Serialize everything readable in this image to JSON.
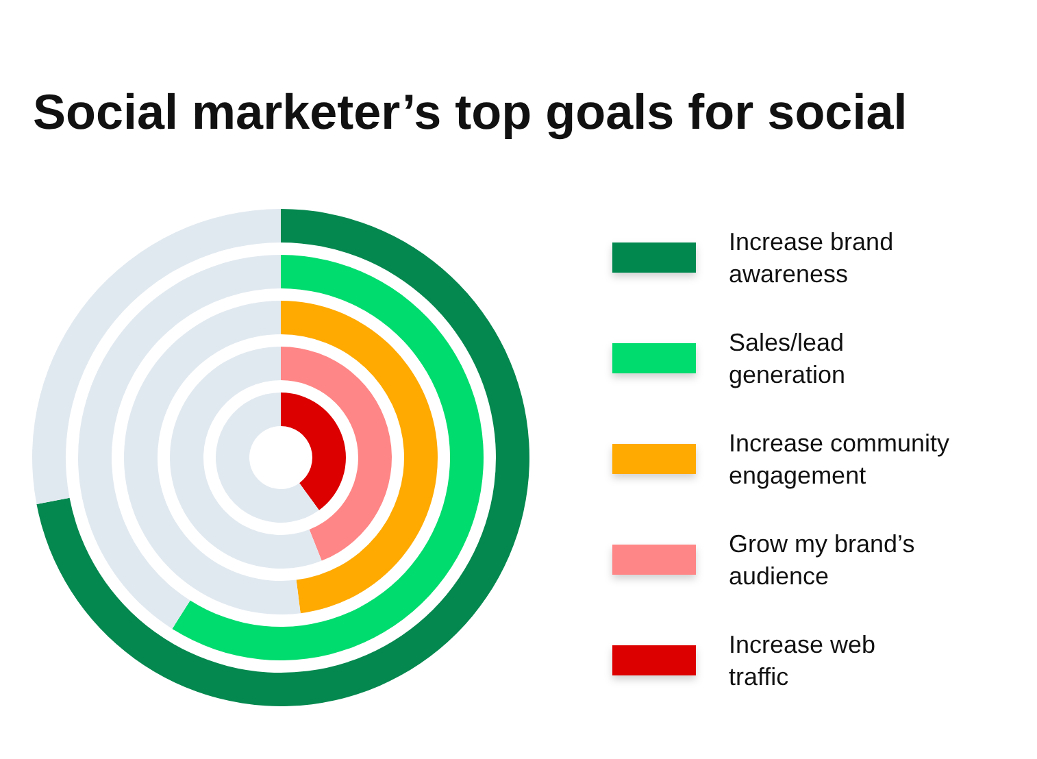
{
  "chart_data": [
    {
      "type": "donut",
      "title": "Social marketer’s top goals for social",
      "categories": [
        "Increase brand awareness",
        null
      ],
      "values": [
        72,
        28
      ],
      "colors": [
        "#04884f",
        "#e1e9f0"
      ],
      "legend": "right"
    },
    {
      "type": "donut",
      "categories": [
        "Sales/lead generation",
        null
      ],
      "values": [
        59,
        41
      ],
      "colors": [
        "#00dc6e",
        "#e1e9f0"
      ],
      "legend": "right"
    },
    {
      "type": "donut",
      "categories": [
        "Increase community engagement",
        null
      ],
      "values": [
        48,
        52
      ],
      "colors": [
        "#ffaa00",
        "#e1e9f0"
      ],
      "legend": "right"
    },
    {
      "type": "donut",
      "categories": [
        "Grow my brand’s audience",
        null
      ],
      "values": [
        44,
        56
      ],
      "colors": [
        "#ff8686",
        "#e1e9f0"
      ],
      "legend": "right"
    },
    {
      "type": "donut",
      "categories": [
        "Increase web traffic",
        null
      ],
      "values": [
        40,
        60
      ],
      "colors": [
        "#dc0000",
        "#e1e9f0"
      ],
      "legend": "right"
    }
  ]
}
